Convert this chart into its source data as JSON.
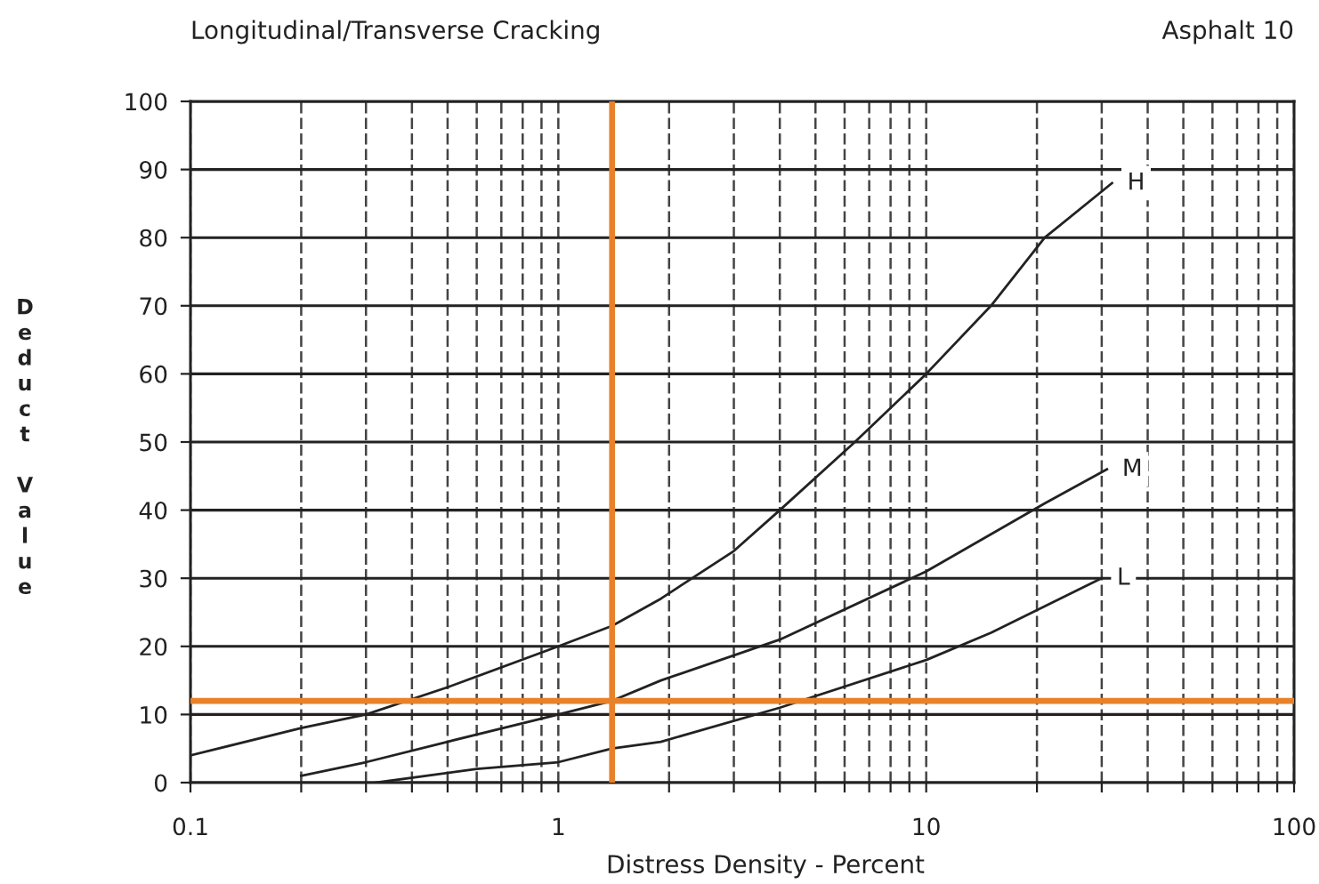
{
  "chart_data": {
    "type": "line",
    "title": "Longitudinal/Transverse Cracking",
    "subtitle": "Asphalt 10",
    "xlabel": "Distress Density - Percent",
    "ylabel": "Deduct Value",
    "log": "x",
    "xlim": [
      0.1,
      100
    ],
    "ylim": [
      0,
      100
    ],
    "xticks": [
      0.1,
      {
        "value": 0.2,
        "label": null
      },
      {
        "value": 0.3,
        "label": null
      },
      {
        "value": 0.4,
        "label": null
      },
      {
        "value": 0.5,
        "label": null
      },
      {
        "value": 0.6,
        "label": null
      },
      {
        "value": 0.7,
        "label": null
      },
      {
        "value": 0.8,
        "label": null
      },
      {
        "value": 0.9,
        "label": null
      },
      1,
      {
        "value": 2,
        "label": null
      },
      {
        "value": 3,
        "label": null
      },
      {
        "value": 4,
        "label": null
      },
      {
        "value": 5,
        "label": null
      },
      {
        "value": 6,
        "label": null
      },
      {
        "value": 7,
        "label": null
      },
      {
        "value": 8,
        "label": null
      },
      {
        "value": 9,
        "label": null
      },
      10,
      {
        "value": 20,
        "label": null
      },
      {
        "value": 30,
        "label": null
      },
      {
        "value": 40,
        "label": null
      },
      {
        "value": 50,
        "label": null
      },
      {
        "value": 60,
        "label": null
      },
      {
        "value": 70,
        "label": null
      },
      {
        "value": 80,
        "label": null
      },
      {
        "value": 90,
        "label": null
      },
      100
    ],
    "yticks": [
      0,
      10,
      20,
      30,
      40,
      50,
      60,
      70,
      80,
      90,
      100
    ],
    "grid": true,
    "marker": "none",
    "line_style": "solid",
    "ref_lines": [
      {
        "axis": "x",
        "value": 1.4,
        "color": "#e8822a"
      },
      {
        "axis": "y",
        "value": 12,
        "color": "#e8822a"
      }
    ],
    "series": [
      {
        "name": "H",
        "color": "#222222",
        "x": [
          0.1,
          0.2,
          0.3,
          0.5,
          1,
          1.4,
          1.9,
          3,
          4,
          6.4,
          10,
          15,
          21,
          32
        ],
        "values": [
          4,
          8,
          10,
          14,
          20,
          23,
          27,
          34,
          40,
          50,
          60,
          70,
          80,
          88
        ]
      },
      {
        "name": "M",
        "color": "#222222",
        "x": [
          0.2,
          0.3,
          0.5,
          1,
          1.4,
          1.9,
          4,
          10,
          21,
          31
        ],
        "values": [
          1,
          3,
          6,
          10,
          12,
          15,
          21,
          31,
          41,
          46
        ]
      },
      {
        "name": "L",
        "color": "#222222",
        "x": [
          0.32,
          0.6,
          1,
          1.4,
          1.9,
          4,
          10,
          15,
          30
        ],
        "values": [
          0,
          2,
          3,
          5,
          6,
          11,
          18,
          22,
          30
        ]
      }
    ]
  }
}
